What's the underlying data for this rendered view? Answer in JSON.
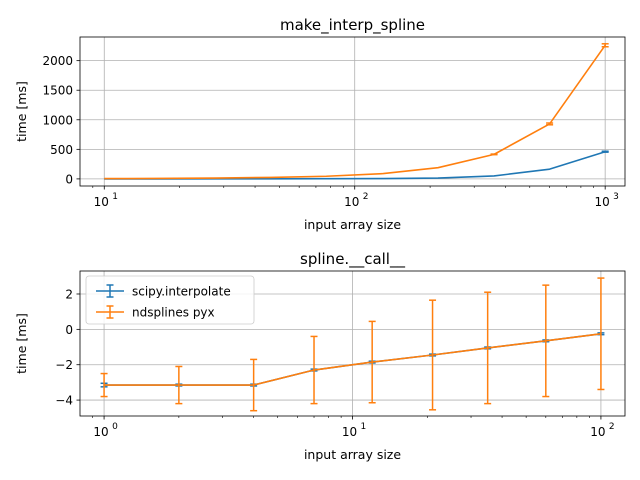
{
  "chart_data": [
    {
      "type": "line",
      "title": "make_interp_spline",
      "xlabel": "input array size",
      "ylabel": "time [ms]",
      "xscale": "log",
      "xlim": [
        8,
        1200
      ],
      "ylim": [
        -120,
        2400
      ],
      "xticks": [
        10,
        100,
        1000
      ],
      "xtick_labels": [
        {
          "base": "10",
          "exp": "1"
        },
        {
          "base": "10",
          "exp": "2"
        },
        {
          "base": "10",
          "exp": "3"
        }
      ],
      "yticks": [
        0,
        500,
        1000,
        1500,
        2000
      ],
      "ytick_labels": [
        "0",
        "500",
        "1000",
        "1500",
        "2000"
      ],
      "grid": true,
      "series": [
        {
          "name": "scipy.interpolate",
          "color": "#1f77b4",
          "x": [
            10,
            16,
            28,
            46,
            77,
            130,
            215,
            360,
            600,
            1000
          ],
          "y": [
            0,
            0,
            1,
            2,
            3,
            6,
            14,
            50,
            165,
            460
          ],
          "yerr": [
            0,
            0,
            0,
            0,
            0,
            0,
            0,
            0,
            0,
            8
          ]
        },
        {
          "name": "ndsplines pyx",
          "color": "#ff7f0e",
          "x": [
            10,
            16,
            28,
            46,
            77,
            130,
            215,
            360,
            600,
            1000
          ],
          "y": [
            5,
            8,
            15,
            25,
            45,
            90,
            190,
            415,
            930,
            2260
          ],
          "yerr": [
            0,
            0,
            0,
            0,
            0,
            0,
            0,
            5,
            15,
            25
          ]
        }
      ]
    },
    {
      "type": "line",
      "title": "spline.__call__",
      "xlabel": "input array size",
      "ylabel": "time [ms]",
      "xscale": "log",
      "xlim": [
        0.8,
        125
      ],
      "ylim": [
        -4.9,
        3.3
      ],
      "xticks": [
        1,
        10,
        100
      ],
      "xtick_labels": [
        {
          "base": "10",
          "exp": "0"
        },
        {
          "base": "10",
          "exp": "1"
        },
        {
          "base": "10",
          "exp": "2"
        }
      ],
      "yticks": [
        -4,
        -2,
        0,
        2
      ],
      "ytick_labels": [
        "−4",
        "−2",
        "0",
        "2"
      ],
      "grid": true,
      "legend": "upper-left",
      "series": [
        {
          "name": "scipy.interpolate",
          "color": "#1f77b4",
          "x": [
            1,
            2,
            4,
            7,
            12,
            21,
            35,
            60,
            100
          ],
          "y": [
            -3.15,
            -3.15,
            -3.15,
            -2.3,
            -1.85,
            -1.45,
            -1.05,
            -0.65,
            -0.25
          ],
          "yerr": [
            0.1,
            0.05,
            0.05,
            0.05,
            0.05,
            0.05,
            0.05,
            0.05,
            0.05
          ]
        },
        {
          "name": "ndsplines pyx",
          "color": "#ff7f0e",
          "x": [
            1,
            2,
            4,
            7,
            12,
            21,
            35,
            60,
            100
          ],
          "y": [
            -3.15,
            -3.15,
            -3.15,
            -2.3,
            -1.85,
            -1.45,
            -1.05,
            -0.65,
            -0.25
          ],
          "yerr": [
            0.65,
            1.05,
            1.45,
            1.9,
            2.3,
            3.1,
            3.15,
            3.15,
            3.15
          ]
        }
      ]
    }
  ]
}
